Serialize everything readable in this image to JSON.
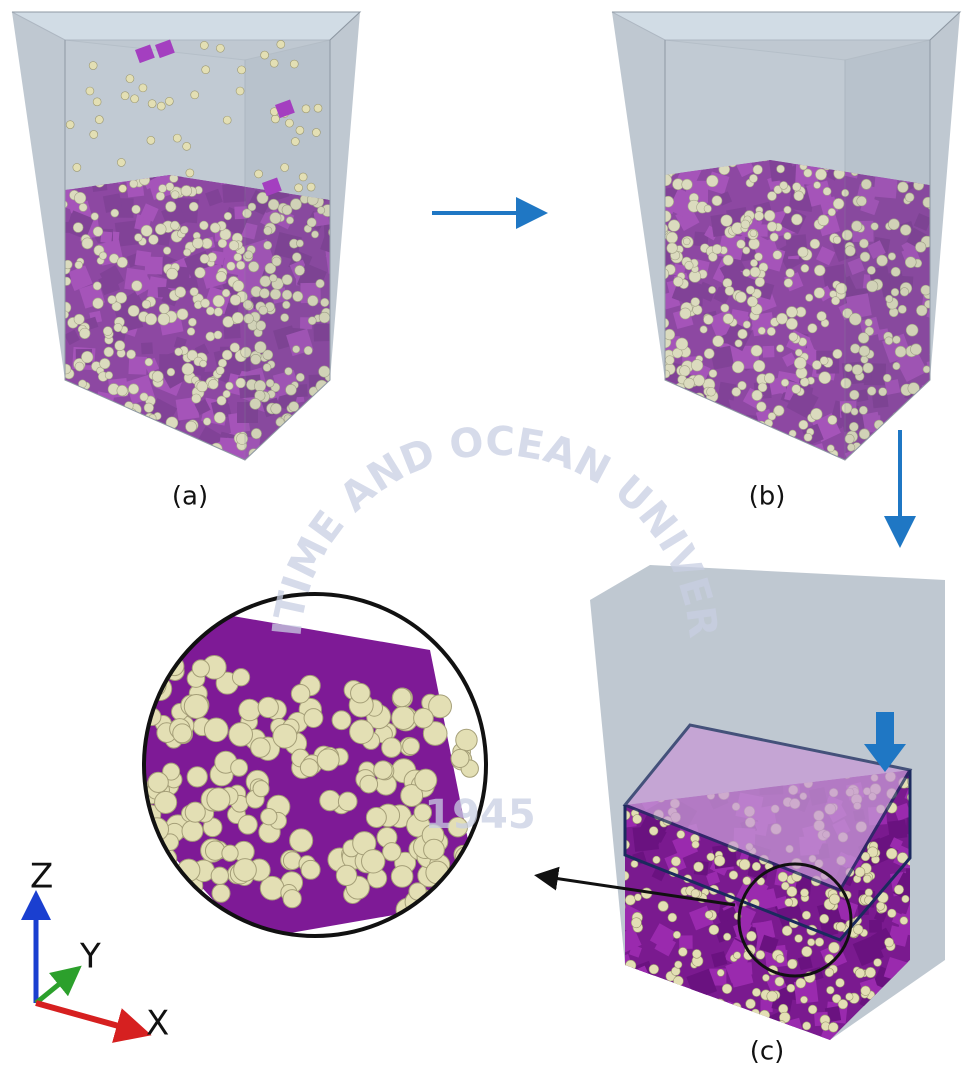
{
  "labels": {
    "a": "(a)",
    "b": "(b)",
    "c": "(c)"
  },
  "axes": {
    "x": "X",
    "y": "Y",
    "z": "Z"
  },
  "watermark": {
    "name": "MARITIME AND OCEAN UNIVERSITY",
    "year": "1945"
  }
}
